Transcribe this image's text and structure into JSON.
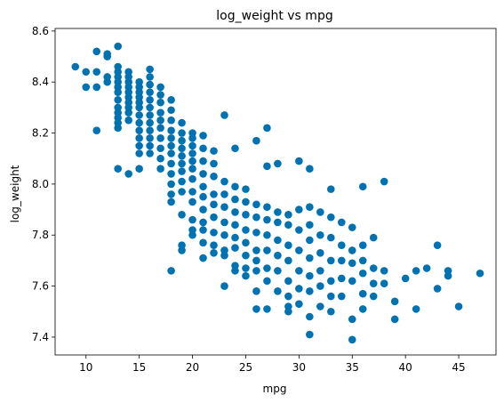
{
  "chart_data": {
    "type": "scatter",
    "title": "log_weight vs mpg",
    "xlabel": "mpg",
    "ylabel": "log_weight",
    "xlim": [
      7.1,
      48.5
    ],
    "ylim": [
      7.33,
      8.61
    ],
    "x_ticks": [
      10,
      15,
      20,
      25,
      30,
      35,
      40,
      45
    ],
    "y_ticks": [
      7.4,
      7.6,
      7.8,
      8.0,
      8.2,
      8.4,
      8.6
    ],
    "grid": false,
    "legend": "none",
    "marker_color": "#0072b2",
    "points": [
      [
        9,
        8.46
      ],
      [
        10,
        8.44
      ],
      [
        10,
        8.38
      ],
      [
        11,
        8.52
      ],
      [
        11,
        8.44
      ],
      [
        11,
        8.38
      ],
      [
        11,
        8.21
      ],
      [
        12,
        8.51
      ],
      [
        12,
        8.5
      ],
      [
        12,
        8.42
      ],
      [
        12,
        8.4
      ],
      [
        13,
        8.54
      ],
      [
        13,
        8.46
      ],
      [
        13,
        8.44
      ],
      [
        13,
        8.42
      ],
      [
        13,
        8.4
      ],
      [
        13,
        8.38
      ],
      [
        13,
        8.36
      ],
      [
        13,
        8.33
      ],
      [
        13,
        8.3
      ],
      [
        13,
        8.28
      ],
      [
        13,
        8.26
      ],
      [
        13,
        8.24
      ],
      [
        13,
        8.22
      ],
      [
        13,
        8.06
      ],
      [
        14,
        8.44
      ],
      [
        14,
        8.42
      ],
      [
        14,
        8.4
      ],
      [
        14,
        8.38
      ],
      [
        14,
        8.36
      ],
      [
        14,
        8.34
      ],
      [
        14,
        8.32
      ],
      [
        14,
        8.3
      ],
      [
        14,
        8.28
      ],
      [
        14,
        8.25
      ],
      [
        14,
        8.04
      ],
      [
        15,
        8.4
      ],
      [
        15,
        8.38
      ],
      [
        15,
        8.36
      ],
      [
        15,
        8.34
      ],
      [
        15,
        8.32
      ],
      [
        15,
        8.3
      ],
      [
        15,
        8.27
      ],
      [
        15,
        8.24
      ],
      [
        15,
        8.21
      ],
      [
        15,
        8.18
      ],
      [
        15,
        8.15
      ],
      [
        15,
        8.12
      ],
      [
        15,
        8.06
      ],
      [
        16,
        8.45
      ],
      [
        16,
        8.42
      ],
      [
        16,
        8.39
      ],
      [
        16,
        8.36
      ],
      [
        16,
        8.33
      ],
      [
        16,
        8.3
      ],
      [
        16,
        8.27
      ],
      [
        16,
        8.24
      ],
      [
        16,
        8.21
      ],
      [
        16,
        8.18
      ],
      [
        16,
        8.15
      ],
      [
        16,
        8.12
      ],
      [
        17,
        8.38
      ],
      [
        17,
        8.35
      ],
      [
        17,
        8.32
      ],
      [
        17,
        8.28
      ],
      [
        17,
        8.25
      ],
      [
        17,
        8.22
      ],
      [
        17,
        8.18
      ],
      [
        17,
        8.14
      ],
      [
        17,
        8.1
      ],
      [
        17,
        8.06
      ],
      [
        18,
        8.33
      ],
      [
        18,
        8.29
      ],
      [
        18,
        8.25
      ],
      [
        18,
        8.21
      ],
      [
        18,
        8.18
      ],
      [
        18,
        8.15
      ],
      [
        18,
        8.12
      ],
      [
        18,
        8.08
      ],
      [
        18,
        8.04
      ],
      [
        18,
        8.0
      ],
      [
        18,
        7.96
      ],
      [
        18,
        7.93
      ],
      [
        18,
        7.66
      ],
      [
        19,
        8.24
      ],
      [
        19,
        8.2
      ],
      [
        19,
        8.17
      ],
      [
        19,
        8.14
      ],
      [
        19,
        8.11
      ],
      [
        19,
        8.08
      ],
      [
        19,
        8.05
      ],
      [
        19,
        8.01
      ],
      [
        19,
        7.97
      ],
      [
        19,
        7.88
      ],
      [
        19,
        7.76
      ],
      [
        19,
        7.74
      ],
      [
        20,
        8.2
      ],
      [
        20,
        8.18
      ],
      [
        20,
        8.15
      ],
      [
        20,
        8.12
      ],
      [
        20,
        8.09
      ],
      [
        20,
        8.06
      ],
      [
        20,
        8.02
      ],
      [
        20,
        7.97
      ],
      [
        20,
        7.93
      ],
      [
        20,
        7.86
      ],
      [
        20,
        7.82
      ],
      [
        20,
        7.8
      ],
      [
        21,
        8.19
      ],
      [
        21,
        8.14
      ],
      [
        21,
        8.09
      ],
      [
        21,
        8.04
      ],
      [
        21,
        7.99
      ],
      [
        21,
        7.95
      ],
      [
        21,
        7.9
      ],
      [
        21,
        7.85
      ],
      [
        21,
        7.82
      ],
      [
        21,
        7.77
      ],
      [
        21,
        7.71
      ],
      [
        22,
        8.13
      ],
      [
        22,
        8.08
      ],
      [
        22,
        8.03
      ],
      [
        22,
        7.96
      ],
      [
        22,
        7.92
      ],
      [
        22,
        7.87
      ],
      [
        22,
        7.81
      ],
      [
        22,
        7.76
      ],
      [
        22,
        7.73
      ],
      [
        23,
        8.27
      ],
      [
        23,
        8.01
      ],
      [
        23,
        7.96
      ],
      [
        23,
        7.91
      ],
      [
        23,
        7.85
      ],
      [
        23,
        7.8
      ],
      [
        23,
        7.74
      ],
      [
        23,
        7.72
      ],
      [
        23,
        7.6
      ],
      [
        24,
        8.14
      ],
      [
        24,
        7.99
      ],
      [
        24,
        7.94
      ],
      [
        24,
        7.89
      ],
      [
        24,
        7.84
      ],
      [
        24,
        7.79
      ],
      [
        24,
        7.75
      ],
      [
        24,
        7.68
      ],
      [
        24,
        7.66
      ],
      [
        25,
        7.98
      ],
      [
        25,
        7.93
      ],
      [
        25,
        7.88
      ],
      [
        25,
        7.82
      ],
      [
        25,
        7.77
      ],
      [
        25,
        7.72
      ],
      [
        25,
        7.67
      ],
      [
        25,
        7.64
      ],
      [
        26,
        8.17
      ],
      [
        26,
        7.92
      ],
      [
        26,
        7.87
      ],
      [
        26,
        7.81
      ],
      [
        26,
        7.74
      ],
      [
        26,
        7.7
      ],
      [
        26,
        7.66
      ],
      [
        26,
        7.58
      ],
      [
        26,
        7.51
      ],
      [
        27,
        8.22
      ],
      [
        27,
        8.07
      ],
      [
        27,
        7.91
      ],
      [
        27,
        7.86
      ],
      [
        27,
        7.8
      ],
      [
        27,
        7.74
      ],
      [
        27,
        7.67
      ],
      [
        27,
        7.62
      ],
      [
        27,
        7.51
      ],
      [
        28,
        8.08
      ],
      [
        28,
        7.89
      ],
      [
        28,
        7.85
      ],
      [
        28,
        7.78
      ],
      [
        28,
        7.72
      ],
      [
        28,
        7.66
      ],
      [
        28,
        7.58
      ],
      [
        29,
        7.88
      ],
      [
        29,
        7.84
      ],
      [
        29,
        7.76
      ],
      [
        29,
        7.7
      ],
      [
        29,
        7.62
      ],
      [
        29,
        7.56
      ],
      [
        29,
        7.52
      ],
      [
        29,
        7.5
      ],
      [
        30,
        8.09
      ],
      [
        30,
        7.9
      ],
      [
        30,
        7.82
      ],
      [
        30,
        7.74
      ],
      [
        30,
        7.66
      ],
      [
        30,
        7.59
      ],
      [
        30,
        7.53
      ],
      [
        31,
        8.06
      ],
      [
        31,
        7.91
      ],
      [
        31,
        7.84
      ],
      [
        31,
        7.78
      ],
      [
        31,
        7.71
      ],
      [
        31,
        7.64
      ],
      [
        31,
        7.58
      ],
      [
        31,
        7.48
      ],
      [
        31,
        7.41
      ],
      [
        32,
        7.89
      ],
      [
        32,
        7.8
      ],
      [
        32,
        7.73
      ],
      [
        32,
        7.66
      ],
      [
        32,
        7.6
      ],
      [
        32,
        7.52
      ],
      [
        33,
        7.98
      ],
      [
        33,
        7.87
      ],
      [
        33,
        7.79
      ],
      [
        33,
        7.7
      ],
      [
        33,
        7.62
      ],
      [
        33,
        7.56
      ],
      [
        33,
        7.5
      ],
      [
        34,
        7.85
      ],
      [
        34,
        7.76
      ],
      [
        34,
        7.7
      ],
      [
        34,
        7.63
      ],
      [
        34,
        7.56
      ],
      [
        35,
        7.83
      ],
      [
        35,
        7.74
      ],
      [
        35,
        7.69
      ],
      [
        35,
        7.62
      ],
      [
        35,
        7.47
      ],
      [
        35,
        7.39
      ],
      [
        36,
        7.99
      ],
      [
        36,
        7.76
      ],
      [
        36,
        7.7
      ],
      [
        36,
        7.65
      ],
      [
        36,
        7.57
      ],
      [
        36,
        7.51
      ],
      [
        37,
        7.79
      ],
      [
        37,
        7.67
      ],
      [
        37,
        7.61
      ],
      [
        37,
        7.56
      ],
      [
        38,
        8.01
      ],
      [
        38,
        7.66
      ],
      [
        38,
        7.61
      ],
      [
        39,
        7.54
      ],
      [
        39,
        7.47
      ],
      [
        40,
        7.63
      ],
      [
        41,
        7.66
      ],
      [
        41,
        7.51
      ],
      [
        42,
        7.67
      ],
      [
        43,
        7.59
      ],
      [
        43,
        7.76
      ],
      [
        44,
        7.66
      ],
      [
        44,
        7.64
      ],
      [
        45,
        7.52
      ],
      [
        47,
        7.65
      ]
    ]
  }
}
